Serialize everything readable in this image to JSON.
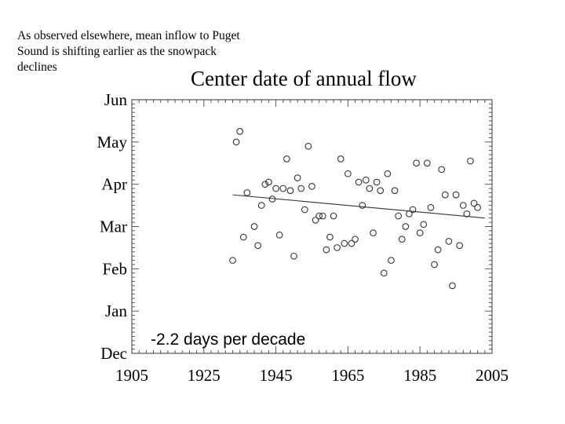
{
  "note": "As observed elsewhere, mean inflow to Puget Sound is shifting earlier as the snowpack declines",
  "chart_data": {
    "type": "scatter",
    "title": "Center date of annual flow",
    "xlabel": "",
    "ylabel": "",
    "xlim": [
      1905,
      2005
    ],
    "y_ticks": [
      "Dec",
      "Jan",
      "Feb",
      "Mar",
      "Apr",
      "May",
      "Jun"
    ],
    "x_ticks": [
      1905,
      1925,
      1945,
      1965,
      1985,
      2005
    ],
    "y_scale_note": "y in months after Dec 1 (0 = Dec, 6 = Jun)",
    "ylim": [
      0,
      6
    ],
    "annotation": "-2.2 days per decade",
    "grid": false,
    "points": [
      [
        1933,
        2.2
      ],
      [
        1934,
        5.0
      ],
      [
        1935,
        5.25
      ],
      [
        1936,
        2.75
      ],
      [
        1937,
        3.8
      ],
      [
        1939,
        3.0
      ],
      [
        1940,
        2.55
      ],
      [
        1941,
        3.5
      ],
      [
        1942,
        4.0
      ],
      [
        1943,
        4.05
      ],
      [
        1944,
        3.65
      ],
      [
        1945,
        3.9
      ],
      [
        1946,
        2.8
      ],
      [
        1947,
        3.9
      ],
      [
        1948,
        4.6
      ],
      [
        1949,
        3.85
      ],
      [
        1950,
        2.3
      ],
      [
        1951,
        4.15
      ],
      [
        1952,
        3.9
      ],
      [
        1953,
        3.4
      ],
      [
        1954,
        4.9
      ],
      [
        1955,
        3.95
      ],
      [
        1956,
        3.15
      ],
      [
        1957,
        3.25
      ],
      [
        1958,
        3.25
      ],
      [
        1959,
        2.45
      ],
      [
        1960,
        2.75
      ],
      [
        1961,
        3.25
      ],
      [
        1962,
        2.5
      ],
      [
        1963,
        4.6
      ],
      [
        1964,
        2.6
      ],
      [
        1965,
        4.25
      ],
      [
        1966,
        2.6
      ],
      [
        1967,
        2.7
      ],
      [
        1968,
        4.05
      ],
      [
        1969,
        3.5
      ],
      [
        1970,
        4.1
      ],
      [
        1971,
        3.9
      ],
      [
        1972,
        2.85
      ],
      [
        1973,
        4.05
      ],
      [
        1974,
        3.85
      ],
      [
        1975,
        1.9
      ],
      [
        1976,
        4.25
      ],
      [
        1977,
        2.2
      ],
      [
        1978,
        3.85
      ],
      [
        1979,
        3.25
      ],
      [
        1980,
        2.7
      ],
      [
        1981,
        3.0
      ],
      [
        1982,
        3.3
      ],
      [
        1983,
        3.4
      ],
      [
        1984,
        4.5
      ],
      [
        1985,
        2.85
      ],
      [
        1986,
        3.05
      ],
      [
        1987,
        4.5
      ],
      [
        1988,
        3.45
      ],
      [
        1989,
        2.1
      ],
      [
        1990,
        2.45
      ],
      [
        1991,
        4.35
      ],
      [
        1992,
        3.75
      ],
      [
        1993,
        2.65
      ],
      [
        1994,
        1.6
      ],
      [
        1995,
        3.75
      ],
      [
        1996,
        2.55
      ],
      [
        1997,
        3.5
      ],
      [
        1998,
        3.3
      ],
      [
        1999,
        4.55
      ],
      [
        2000,
        3.55
      ],
      [
        2001,
        3.45
      ]
    ],
    "trend_line": {
      "x": [
        1933,
        2003
      ],
      "y": [
        3.75,
        3.2
      ]
    }
  }
}
